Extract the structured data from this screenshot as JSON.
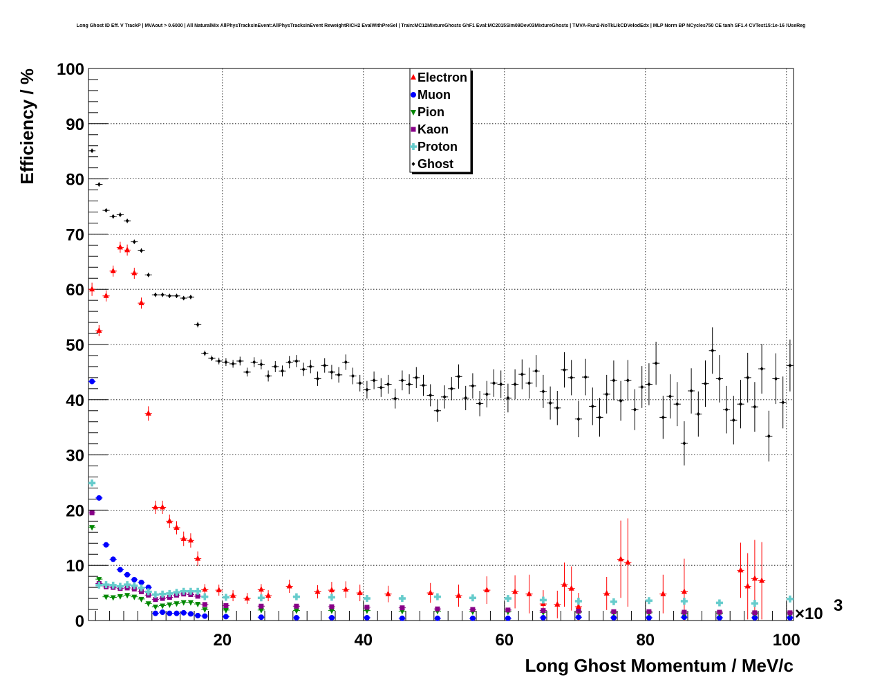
{
  "chart_data": {
    "type": "scatter",
    "title": "Long Ghost ID Eff. V TrackP | MVAout > 0.6000 | All NaturalMix AllPhysTracksInEvent:AllPhysTracksInEvent ReweightRICH2 EvalWithPreSel | Train:MC12MixtureGhosts GhF1 Eval:MC2015Sim09Dev03MixtureGhosts | TMVA-Run2-NoTkLikCDVelodEdx | MLP Norm BP NCycles750 CE tanh SF1.4 CVTest15:1e-16 !UseReg",
    "xlabel": "Long Ghost Momentum / MeV/c",
    "ylabel": "Efficiency / %",
    "x_multiplier": "×10",
    "x_multiplier_exp": "3",
    "xlim": [
      1,
      101
    ],
    "ylim": [
      0,
      100
    ],
    "x_ticks": [
      "20",
      "40",
      "60",
      "80",
      "100"
    ],
    "y_ticks": [
      "0",
      "10",
      "20",
      "30",
      "40",
      "50",
      "60",
      "70",
      "80",
      "90",
      "100"
    ],
    "grid": true,
    "legend_position": "top-center",
    "series": [
      {
        "name": "Electron",
        "color": "#ff0000",
        "marker": "triangle-up",
        "x": [
          1.5,
          2.5,
          3.5,
          4.5,
          5.5,
          6.5,
          7.5,
          8.5,
          9.5,
          10.5,
          11.5,
          12.5,
          13.5,
          14.5,
          15.5,
          16.5,
          17.5,
          19.5,
          21.5,
          23.5,
          25.5,
          26.5,
          29.5,
          33.5,
          35.5,
          37.5,
          39.5,
          43.5,
          49.5,
          53.5,
          57.5,
          61.5,
          63.5,
          65.5,
          67.5,
          68.5,
          69.5,
          70.5,
          74.5,
          76.5,
          77.5,
          82.5,
          85.5,
          93.5,
          94.5,
          95.5,
          96.5
        ],
        "y": [
          60,
          52.5,
          58.8,
          63.3,
          67.6,
          67.1,
          62.9,
          57.5,
          37.5,
          20.5,
          20.5,
          18,
          16.8,
          14.8,
          14.5,
          11.2,
          5.6,
          5.5,
          4.5,
          4,
          5.6,
          4.5,
          6.2,
          5.2,
          5.5,
          5.6,
          5,
          4.8,
          5,
          4.5,
          5.5,
          5.2,
          4.8,
          3,
          2.9,
          6.5,
          5.8,
          2.5,
          4.9,
          11.1,
          10.5,
          4.8,
          5.2,
          9.1,
          6.2,
          7.6,
          7.2
        ],
        "err": [
          1.2,
          1,
          1,
          1,
          1,
          1,
          1,
          1,
          1.3,
          1.2,
          1.2,
          1.2,
          1.2,
          1.3,
          1.3,
          1.3,
          1,
          1,
          1,
          1,
          1,
          1,
          1.2,
          1.2,
          1.5,
          1.5,
          1.5,
          1.5,
          1.8,
          2,
          2.5,
          3,
          3.5,
          2.5,
          2.5,
          4,
          4,
          2.5,
          3,
          7,
          8,
          3.5,
          6,
          5,
          6,
          7,
          7
        ]
      },
      {
        "name": "Muon",
        "color": "#0000ff",
        "marker": "circle",
        "x": [
          1.5,
          2.5,
          3.5,
          4.5,
          5.5,
          6.5,
          7.5,
          8.5,
          9.5,
          10.5,
          11.5,
          12.5,
          13.5,
          14.5,
          15.5,
          16.5,
          17.5,
          20.5,
          25.5,
          30.5,
          35.5,
          40.5,
          45.5,
          50.5,
          55.5,
          60.5,
          65.5,
          70.5,
          75.5,
          80.5,
          85.5,
          90.5,
          95.5,
          100.5
        ],
        "y": [
          43.3,
          22.2,
          13.7,
          11.1,
          9.2,
          8.3,
          7.4,
          6.9,
          6,
          1.3,
          1.5,
          1.3,
          1.3,
          1.4,
          1.2,
          0.9,
          0.8,
          0.7,
          0.6,
          0.5,
          0.5,
          0.5,
          0.4,
          0.4,
          0.4,
          0.4,
          0.5,
          0.6,
          0.5,
          0.5,
          0.6,
          0.5,
          0.5,
          0.5
        ],
        "err": [
          0.5,
          0.4,
          0.3,
          0.3,
          0.3,
          0.3,
          0.3,
          0.3,
          0.3,
          0.15,
          0.15,
          0.15,
          0.15,
          0.15,
          0.15,
          0.1,
          0.1,
          0.1,
          0.1,
          0.1,
          0.1,
          0.1,
          0.1,
          0.1,
          0.15,
          0.2,
          0.3,
          0.3,
          0.3,
          0.4,
          0.4,
          0.4,
          0.5,
          0.5
        ]
      },
      {
        "name": "Pion",
        "color": "#008800",
        "marker": "triangle-down",
        "x": [
          1.5,
          2.5,
          3.5,
          4.5,
          5.5,
          6.5,
          7.5,
          8.5,
          9.5,
          10.5,
          11.5,
          12.5,
          13.5,
          14.5,
          15.5,
          16.5,
          17.5,
          20.5,
          25.5,
          30.5,
          35.5,
          40.5,
          45.5,
          50.5,
          55.5,
          60.5,
          65.5,
          70.5,
          75.5,
          80.5,
          85.5,
          90.5,
          95.5,
          100.5
        ],
        "y": [
          16.9,
          7.5,
          4.3,
          4.2,
          4.4,
          4.6,
          4.3,
          3.9,
          3.1,
          2.5,
          2.7,
          2.9,
          3.1,
          3.3,
          3.3,
          3,
          2,
          1.9,
          1.9,
          1.8,
          1.8,
          1.8,
          1.7,
          1.7,
          1.6,
          1.6,
          1.5,
          1.5,
          1.4,
          1.4,
          1.3,
          1.3,
          1.3,
          1.2
        ],
        "err": [
          0.3,
          0.2,
          0.15,
          0.15,
          0.15,
          0.15,
          0.15,
          0.15,
          0.15,
          0.1,
          0.1,
          0.1,
          0.1,
          0.1,
          0.1,
          0.1,
          0.1,
          0.1,
          0.1,
          0.1,
          0.1,
          0.1,
          0.1,
          0.15,
          0.2,
          0.2,
          0.2,
          0.3,
          0.3,
          0.3,
          0.3,
          0.3,
          0.3,
          0.3
        ]
      },
      {
        "name": "Kaon",
        "color": "#880088",
        "marker": "square",
        "x": [
          1.5,
          2.5,
          3.5,
          4.5,
          5.5,
          6.5,
          7.5,
          8.5,
          9.5,
          10.5,
          11.5,
          12.5,
          13.5,
          14.5,
          15.5,
          16.5,
          17.5,
          20.5,
          25.5,
          30.5,
          35.5,
          40.5,
          45.5,
          50.5,
          55.5,
          60.5,
          65.5,
          70.5,
          75.5,
          80.5,
          85.5,
          90.5,
          95.5,
          100.5
        ],
        "y": [
          19.5,
          6.7,
          6.1,
          6,
          5.8,
          5.9,
          5.7,
          5.2,
          4.6,
          3.8,
          4,
          4.2,
          4.6,
          4.8,
          4.7,
          4.4,
          2.9,
          2.7,
          2.6,
          2.6,
          2.5,
          2.4,
          2.3,
          2.1,
          2,
          1.9,
          1.8,
          1.7,
          1.6,
          1.6,
          1.5,
          1.5,
          1.4,
          1.4
        ],
        "err": [
          0.3,
          0.2,
          0.2,
          0.2,
          0.2,
          0.2,
          0.2,
          0.2,
          0.2,
          0.15,
          0.15,
          0.15,
          0.15,
          0.15,
          0.15,
          0.15,
          0.1,
          0.1,
          0.1,
          0.1,
          0.1,
          0.1,
          0.1,
          0.15,
          0.2,
          0.2,
          0.2,
          0.3,
          0.3,
          0.3,
          0.3,
          0.3,
          0.3,
          0.3
        ]
      },
      {
        "name": "Proton",
        "color": "#66cccc",
        "marker": "cross",
        "x": [
          1.5,
          2.5,
          3.5,
          4.5,
          5.5,
          6.5,
          7.5,
          8.5,
          9.5,
          10.5,
          11.5,
          12.5,
          13.5,
          14.5,
          15.5,
          16.5,
          17.5,
          20.5,
          25.5,
          30.5,
          35.5,
          40.5,
          45.5,
          50.5,
          55.5,
          60.5,
          65.5,
          70.5,
          75.5,
          80.5,
          85.5,
          90.5,
          95.5,
          100.5
        ],
        "y": [
          24.9,
          6.4,
          6.5,
          6.4,
          6.2,
          6.5,
          6.3,
          5.9,
          5.2,
          4.7,
          4.8,
          4.9,
          5.1,
          5.3,
          5.3,
          5.3,
          4.3,
          4.2,
          4.1,
          4.3,
          4.2,
          4,
          4,
          4.3,
          4.1,
          4,
          3.7,
          3.5,
          3.4,
          3.6,
          3.5,
          3.2,
          3.1,
          3.9
        ],
        "err": [
          0.4,
          0.2,
          0.2,
          0.2,
          0.2,
          0.2,
          0.2,
          0.2,
          0.2,
          0.2,
          0.2,
          0.2,
          0.2,
          0.2,
          0.2,
          0.2,
          0.15,
          0.15,
          0.15,
          0.15,
          0.2,
          0.2,
          0.2,
          0.3,
          0.3,
          0.3,
          0.4,
          0.4,
          0.4,
          0.5,
          0.5,
          0.6,
          0.6,
          0.6
        ]
      },
      {
        "name": "Ghost",
        "color": "#000000",
        "marker": "diamond",
        "x": [
          1.5,
          2.5,
          3.5,
          4.5,
          5.5,
          6.5,
          7.5,
          8.5,
          9.5,
          10.5,
          11.5,
          12.5,
          13.5,
          14.5,
          15.5,
          16.5,
          17.5,
          18.5,
          19.5,
          20.5,
          21.5,
          22.5,
          23.5,
          24.5,
          25.5,
          26.5,
          27.5,
          28.5,
          29.5,
          30.5,
          31.5,
          32.5,
          33.5,
          34.5,
          35.5,
          36.5,
          37.5,
          38.5,
          39.5,
          40.5,
          41.5,
          42.5,
          43.5,
          44.5,
          45.5,
          46.5,
          47.5,
          48.5,
          49.5,
          50.5,
          51.5,
          52.5,
          53.5,
          54.5,
          55.5,
          56.5,
          57.5,
          58.5,
          59.5,
          60.5,
          61.5,
          62.5,
          63.5,
          64.5,
          65.5,
          66.5,
          67.5,
          68.5,
          69.5,
          70.5,
          71.5,
          72.5,
          73.5,
          74.5,
          75.5,
          76.5,
          77.5,
          78.5,
          79.5,
          80.5,
          81.5,
          82.5,
          83.5,
          84.5,
          85.5,
          86.5,
          87.5,
          88.5,
          89.5,
          90.5,
          91.5,
          92.5,
          93.5,
          94.5,
          95.5,
          96.5,
          97.5,
          98.5,
          99.5,
          100.5
        ],
        "y": [
          85.1,
          79,
          74.3,
          73.2,
          73.5,
          72.4,
          68.6,
          67,
          62.6,
          59,
          59,
          58.8,
          58.8,
          58.4,
          58.6,
          53.6,
          48.4,
          47.5,
          47,
          46.8,
          46.5,
          47,
          45,
          46.8,
          46.4,
          44.3,
          46,
          45.2,
          46.8,
          47,
          45.5,
          46,
          43.8,
          46.2,
          45,
          44.5,
          46.8,
          44.3,
          43,
          41.8,
          43.5,
          42.2,
          42.8,
          40.2,
          43.5,
          42.8,
          44,
          42.6,
          40.8,
          38,
          40.5,
          42,
          44.2,
          40.3,
          42.5,
          39.3,
          41,
          43,
          42.8,
          40.3,
          42.8,
          44.6,
          43,
          45.2,
          41.5,
          39.4,
          38.5,
          45.4,
          44,
          36.5,
          44.1,
          38.8,
          36.8,
          41,
          43.5,
          39.8,
          43.5,
          38.2,
          42.3,
          42.8,
          46.6,
          36.8,
          40.6,
          39.2,
          32.1,
          41.6,
          37.4,
          42.9,
          48.9,
          43.8,
          38.2,
          36.3,
          39.2,
          44,
          38.7,
          45.6,
          33.4,
          43.8,
          39.5,
          46.2
        ],
        "err": [
          0.4,
          0.4,
          0.4,
          0.4,
          0.4,
          0.4,
          0.4,
          0.4,
          0.4,
          0.4,
          0.4,
          0.4,
          0.4,
          0.4,
          0.4,
          0.5,
          0.5,
          0.5,
          0.6,
          0.7,
          0.7,
          0.8,
          0.8,
          0.9,
          0.9,
          1,
          1,
          1,
          1.1,
          1.1,
          1.2,
          1.2,
          1.3,
          1.3,
          1.3,
          1.4,
          1.4,
          1.5,
          1.5,
          1.6,
          1.6,
          1.7,
          1.7,
          1.8,
          1.8,
          1.8,
          1.9,
          1.9,
          2,
          2,
          2.1,
          2.1,
          2.2,
          2.2,
          2.3,
          2.3,
          2.4,
          2.5,
          2.5,
          2.6,
          2.7,
          2.7,
          2.8,
          2.9,
          3,
          3,
          3.1,
          3.2,
          3.2,
          3.3,
          3.3,
          3.4,
          3.5,
          3.5,
          3.6,
          3.6,
          3.7,
          3.7,
          3.8,
          3.8,
          3.9,
          3.9,
          4,
          4,
          4,
          4.1,
          4.1,
          4.2,
          4.2,
          4.3,
          4.3,
          4.4,
          4.4,
          4.5,
          4.5,
          4.5,
          4.6,
          4.6,
          4.7,
          4.7
        ]
      }
    ]
  }
}
